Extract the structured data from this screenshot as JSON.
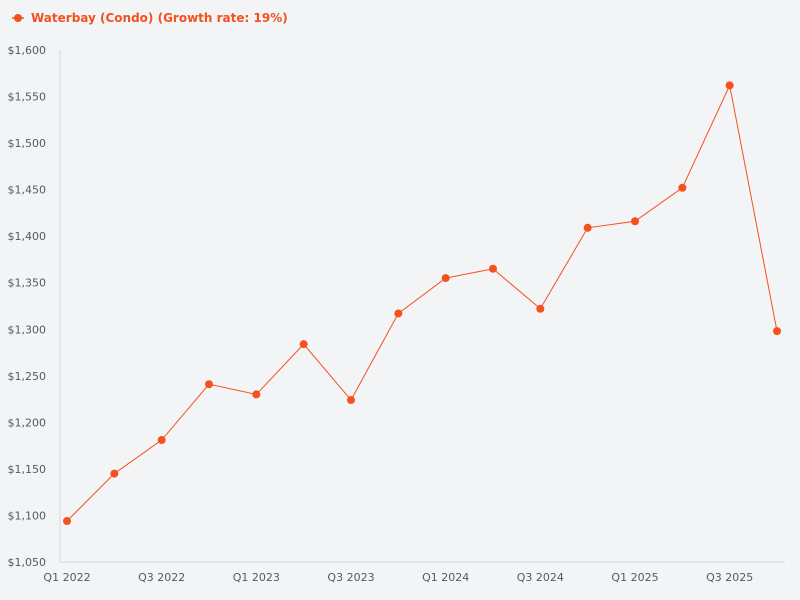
{
  "chart_data": {
    "type": "line",
    "title": "",
    "xlabel": "",
    "ylabel": "",
    "categories": [
      "Q1 2022",
      "Q2 2022",
      "Q3 2022",
      "Q4 2022",
      "Q1 2023",
      "Q2 2023",
      "Q3 2023",
      "Q4 2023",
      "Q1 2024",
      "Q2 2024",
      "Q3 2024",
      "Q4 2024",
      "Q1 2025",
      "Q2 2025",
      "Q3 2025",
      "Q4 2025"
    ],
    "x_tick_labels": [
      "Q1 2022",
      "Q3 2022",
      "Q1 2023",
      "Q3 2023",
      "Q1 2024",
      "Q3 2024",
      "Q1 2025",
      "Q3 2025"
    ],
    "x_tick_every": 2,
    "ylim": [
      1050,
      1600
    ],
    "y_ticks": [
      1050,
      1100,
      1150,
      1200,
      1250,
      1300,
      1350,
      1400,
      1450,
      1500,
      1550,
      1600
    ],
    "y_tick_labels": [
      "$1,050",
      "$1,100",
      "$1,150",
      "$1,200",
      "$1,250",
      "$1,300",
      "$1,350",
      "$1,400",
      "$1,450",
      "$1,500",
      "$1,550",
      "$1,600"
    ],
    "grid": false,
    "legend": "top-left",
    "series": [
      {
        "name": "Waterbay (Condo) (Growth rate: 19%)",
        "color": "#f4511e",
        "values": [
          1094,
          1145,
          1181,
          1241,
          1230,
          1284,
          1224,
          1317,
          1355,
          1365,
          1322,
          1409,
          1416,
          1452,
          1562,
          1298
        ]
      }
    ]
  }
}
